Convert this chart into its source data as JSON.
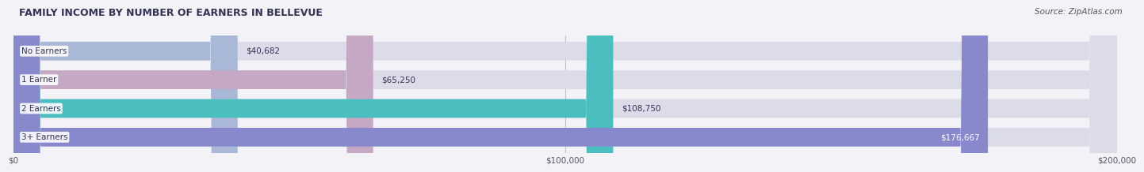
{
  "title": "FAMILY INCOME BY NUMBER OF EARNERS IN BELLEVUE",
  "source": "Source: ZipAtlas.com",
  "categories": [
    "No Earners",
    "1 Earner",
    "2 Earners",
    "3+ Earners"
  ],
  "values": [
    40682,
    65250,
    108750,
    176667
  ],
  "bar_colors": [
    "#aab8d8",
    "#c4a8c4",
    "#4bbfbf",
    "#8888cc"
  ],
  "label_colors": [
    "#333366",
    "#333366",
    "#333366",
    "#ffffff"
  ],
  "value_labels": [
    "$40,682",
    "$65,250",
    "$108,750",
    "$176,667"
  ],
  "xlim": [
    0,
    200000
  ],
  "xticks": [
    0,
    100000,
    200000
  ],
  "xtick_labels": [
    "$0",
    "$100,000",
    "$200,000"
  ],
  "background_color": "#f2f2f7",
  "title_fontsize": 9,
  "source_fontsize": 7.5,
  "bar_label_fontsize": 7.5,
  "value_fontsize": 7.5,
  "tick_fontsize": 7.5
}
